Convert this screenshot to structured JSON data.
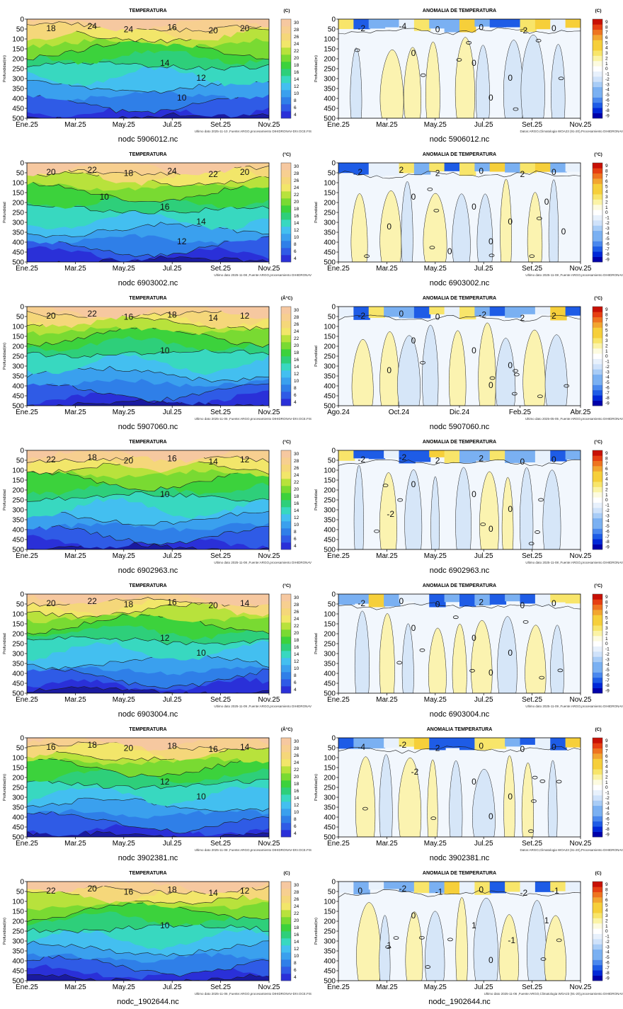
{
  "colors": {
    "temperature": [
      "#1a1aa0",
      "#2a30d8",
      "#2f5be6",
      "#2f7fe8",
      "#3aa0ee",
      "#43bff0",
      "#38d8c0",
      "#2ecf7a",
      "#3cd23c",
      "#79da32",
      "#b8e23c",
      "#f2e66a",
      "#f5d77a",
      "#f7cf90",
      "#f6c8a0"
    ],
    "anomaly": [
      "#0000aa",
      "#0028d8",
      "#1e5ce6",
      "#4a88ee",
      "#7ab0f2",
      "#a8ccf6",
      "#cfe2fa",
      "#e8f1fc",
      "#ffffff",
      "#fdfbe0",
      "#fbf3a6",
      "#f8e56a",
      "#f6cf3a",
      "#f2a530",
      "#ee7420",
      "#e63f12",
      "#c81005"
    ],
    "contour": "#1a1a1a"
  },
  "row_count": 7,
  "chart_data": [
    {
      "type": "heatmap",
      "panel": "temperature",
      "title": "TEMPERATURA",
      "unit": "(C)",
      "ylabel": "Profundidad(m)",
      "ylim": [
        500,
        0
      ],
      "yticks": [
        "0",
        "50",
        "100",
        "150",
        "200",
        "250",
        "300",
        "350",
        "400",
        "450",
        "500"
      ],
      "xticks": [
        "Ene.25",
        "Mar.25",
        "May.25",
        "Jul.25",
        "Set.25",
        "Nov.25"
      ],
      "colorbar_ticks": [
        "4",
        "6",
        "8",
        "10",
        "12",
        "14",
        "16",
        "18",
        "20",
        "22",
        "24",
        "26",
        "28",
        "30"
      ],
      "contour_labels": [
        "18",
        "24",
        "24",
        "16",
        "20",
        "20",
        "14",
        "12",
        "10"
      ],
      "credit": "Ultimo dato 2025-11-10 ,Fuente:ARGO,procesamiento DIHIDRONAV-DIV.OCE.FIS",
      "float": "nodc 5906012.nc"
    },
    {
      "type": "heatmap",
      "panel": "anomaly",
      "title": "ANOMALIA DE TEMPERATURA",
      "unit": "(C)",
      "ylabel": "Profundidad(m)",
      "ylim": [
        500,
        0
      ],
      "yticks": [
        "0",
        "50",
        "100",
        "150",
        "200",
        "250",
        "300",
        "350",
        "400",
        "450",
        "500"
      ],
      "xticks": [
        "Ene.25",
        "Mar.25",
        "May.25",
        "Jul.25",
        "Set.25",
        "Nov.25"
      ],
      "colorbar_ticks": [
        "9",
        "8",
        "7",
        "6",
        "5",
        "4",
        "3",
        "2",
        "1",
        "0",
        "-1",
        "-2",
        "-3",
        "-4",
        "-5",
        "-6",
        "-7",
        "-8",
        "-9"
      ],
      "contour_labels": [
        "-2",
        "-4",
        "0",
        "0",
        "-2",
        "0",
        "0",
        "0",
        "0",
        "0"
      ],
      "credit": "Datos:ARGO,Climatologia WOA23 (91-20),Procesamiento DIHIDRONAV",
      "float": "nodc 5906012.nc"
    },
    {
      "type": "heatmap",
      "panel": "temperature",
      "title": "TEMPERATURA",
      "unit": "(°C)",
      "ylabel": "Profundidad",
      "ylim": [
        500,
        0
      ],
      "yticks": [
        "0",
        "50",
        "100",
        "150",
        "200",
        "250",
        "300",
        "350",
        "400",
        "450",
        "500"
      ],
      "xticks": [
        "Ene.25",
        "Mar.25",
        "May.25",
        "Jul.25",
        "Set.25",
        "Nov.25"
      ],
      "colorbar_ticks": [
        "4",
        "6",
        "8",
        "10",
        "12",
        "14",
        "16",
        "18",
        "20",
        "22",
        "24",
        "26",
        "28",
        "30"
      ],
      "contour_labels": [
        "20",
        "22",
        "18",
        "24",
        "22",
        "20",
        "16",
        "14",
        "12",
        "10"
      ],
      "credit": "Ultimo dato 2025-11-08 ,Fuente:ARGO,procesamiento DIHIDRONAV",
      "float": "nodc 6903002.nc"
    },
    {
      "type": "heatmap",
      "panel": "anomaly",
      "title": "ANOMALIA DE TEMPERATURA",
      "unit": "(°C)",
      "ylabel": "Profundidad",
      "ylim": [
        500,
        0
      ],
      "yticks": [
        "0",
        "50",
        "100",
        "150",
        "200",
        "250",
        "300",
        "350",
        "400",
        "450",
        "500"
      ],
      "xticks": [
        "Ene.25",
        "Mar.25",
        "May.25",
        "Jul.25",
        "Set.25",
        "Nov.25"
      ],
      "colorbar_ticks": [
        "9",
        "8",
        "7",
        "6",
        "5",
        "4",
        "3",
        "2",
        "1",
        "0",
        "-1",
        "-2",
        "-3",
        "-4",
        "-5",
        "-6",
        "-7",
        "-8",
        "-9"
      ],
      "contour_labels": [
        "2",
        "2",
        "2",
        "0",
        "2",
        "0",
        "0",
        "0",
        "0",
        "0",
        "0",
        "0",
        "0",
        "0"
      ],
      "credit": "Ultimo dato 2025-11-08 ,Fuente:ARGO,procesamiento DIHIDRONAV",
      "float": "nodc 6903002.nc"
    },
    {
      "type": "heatmap",
      "panel": "temperature",
      "title": "TEMPERATURA",
      "unit": "(Â°C)",
      "ylabel": "Profundidad(m)",
      "ylim": [
        500,
        0
      ],
      "yticks": [
        "0",
        "50",
        "100",
        "150",
        "200",
        "250",
        "300",
        "350",
        "400",
        "450",
        "500"
      ],
      "xticks": [
        "Ene.25",
        "Mar.25",
        "May.25",
        "Jul.25",
        "Set.25",
        "Nov.25"
      ],
      "colorbar_ticks": [
        "4",
        "6",
        "8",
        "10",
        "12",
        "14",
        "16",
        "18",
        "20",
        "22",
        "24",
        "26",
        "28",
        "30"
      ],
      "contour_labels": [
        "20",
        "22",
        "16",
        "18",
        "14",
        "12",
        "10"
      ],
      "credit": "Ultimo dato 2025-11-05 ,Fuente:ARGO,procesamiento DIHIDRONAV-DIV.OCE.FIS",
      "float": "nodc 5907060.nc"
    },
    {
      "type": "heatmap",
      "panel": "anomaly",
      "title": "ANOMALIA DE TEMPERATURA",
      "unit": "(°C)",
      "ylabel": "Profundidad",
      "ylim": [
        500,
        0
      ],
      "yticks": [
        "0",
        "50",
        "100",
        "150",
        "200",
        "250",
        "300",
        "350",
        "400",
        "450",
        "500"
      ],
      "xticks": [
        "Ago.24",
        "Oct.24",
        "Dic.24",
        "Feb.25",
        "Abr.25"
      ],
      "colorbar_ticks": [
        "9",
        "8",
        "7",
        "6",
        "5",
        "4",
        "3",
        "2",
        "1",
        "0",
        "-1",
        "-2",
        "-3",
        "-4",
        "-5",
        "-6",
        "-7",
        "-8",
        "-9"
      ],
      "contour_labels": [
        "-2",
        "0",
        "0",
        "-2",
        "2",
        "2",
        "0",
        "0",
        "0",
        "0",
        "0"
      ],
      "credit": "Ultimo dato 2025-05-05 ,Fuente:ARGO,procesamiento DIHIDRONAV",
      "float": "nodc 5907060.nc"
    },
    {
      "type": "heatmap",
      "panel": "temperature",
      "title": "TEMPERATURA",
      "unit": "(°C)",
      "ylabel": "Profundidad",
      "ylim": [
        500,
        0
      ],
      "yticks": [
        "0",
        "50",
        "100",
        "150",
        "200",
        "250",
        "300",
        "350",
        "400",
        "450",
        "500"
      ],
      "xticks": [
        "Ene.25",
        "Mar.25",
        "May.25",
        "Jul.25",
        "Set.25",
        "Nov.25"
      ],
      "colorbar_ticks": [
        "4",
        "6",
        "8",
        "10",
        "12",
        "14",
        "16",
        "18",
        "20",
        "22",
        "24",
        "26",
        "28",
        "30"
      ],
      "contour_labels": [
        "22",
        "18",
        "20",
        "16",
        "14",
        "12",
        "10"
      ],
      "credit": "Ultimo dato 2025-11-08 ,Fuente:ARGO,procesamiento DIHIDRONAV",
      "float": "nodc 6902963.nc"
    },
    {
      "type": "heatmap",
      "panel": "anomaly",
      "title": "ANOMALIA DE TEMPERATURA",
      "unit": "(°C)",
      "ylabel": "Profundidad",
      "ylim": [
        500,
        0
      ],
      "yticks": [
        "0",
        "50",
        "100",
        "150",
        "200",
        "250",
        "300",
        "350",
        "400",
        "450",
        "500"
      ],
      "xticks": [
        "Ene.25",
        "Mar.25",
        "May.25",
        "Jul.25",
        "Set.25",
        "Nov.25"
      ],
      "colorbar_ticks": [
        "9",
        "8",
        "7",
        "6",
        "5",
        "4",
        "3",
        "2",
        "1",
        "0",
        "-1",
        "-2",
        "-3",
        "-4",
        "-5",
        "-6",
        "-7",
        "-8",
        "-9"
      ],
      "contour_labels": [
        "-2",
        "-2",
        "2",
        "2",
        "0",
        "0",
        "0",
        "0",
        "0",
        "0",
        "-2"
      ],
      "credit": "Ultimo dato 2025-11-08 ,Fuente:ARGO,procesamiento DIHIDRONAV",
      "float": "nodc 6902963.nc"
    },
    {
      "type": "heatmap",
      "panel": "temperature",
      "title": "TEMPERATURA",
      "unit": "(°C)",
      "ylabel": "Profundidad",
      "ylim": [
        500,
        0
      ],
      "yticks": [
        "0",
        "50",
        "100",
        "150",
        "200",
        "250",
        "300",
        "350",
        "400",
        "450",
        "500"
      ],
      "xticks": [
        "Ene.25",
        "Mar.25",
        "May.25",
        "Jul.25",
        "Set.25",
        "Nov.25"
      ],
      "colorbar_ticks": [
        "4",
        "6",
        "8",
        "10",
        "12",
        "14",
        "16",
        "18",
        "20",
        "22",
        "24",
        "26",
        "28",
        "30"
      ],
      "contour_labels": [
        "20",
        "22",
        "18",
        "16",
        "20",
        "14",
        "12",
        "10"
      ],
      "credit": "Ultimo dato 2025-11-09 ,Fuente:ARGO,procesamiento DIHIDRONAV",
      "float": "nodc 6903004.nc"
    },
    {
      "type": "heatmap",
      "panel": "anomaly",
      "title": "ANOMALIA DE TEMPERATURA",
      "unit": "(°C)",
      "ylabel": "Profundidad",
      "ylim": [
        500,
        0
      ],
      "yticks": [
        "0",
        "50",
        "100",
        "150",
        "200",
        "250",
        "300",
        "350",
        "400",
        "450",
        "500"
      ],
      "xticks": [
        "Ene.25",
        "Mar.25",
        "May.25",
        "Jul.25",
        "Set.25",
        "Nov.25"
      ],
      "colorbar_ticks": [
        "9",
        "8",
        "7",
        "6",
        "5",
        "4",
        "3",
        "2",
        "1",
        "0",
        "-1",
        "-2",
        "-3",
        "-4",
        "-5",
        "-6",
        "-7",
        "-8",
        "-9"
      ],
      "contour_labels": [
        "-2",
        "0",
        "0",
        "2",
        "0",
        "0",
        "0",
        "0",
        "0",
        "0"
      ],
      "credit": "Ultimo dato 2025-11-09 ,Fuente:ARGO,procesamiento DIHIDRONAV",
      "float": "nodc 6903004.nc"
    },
    {
      "type": "heatmap",
      "panel": "temperature",
      "title": "TEMPERATURA",
      "unit": "(Â°C)",
      "ylabel": "Profundidad(m)",
      "ylim": [
        500,
        0
      ],
      "yticks": [
        "0",
        "50",
        "100",
        "150",
        "200",
        "250",
        "300",
        "350",
        "400",
        "450",
        "500"
      ],
      "xticks": [
        "Ene.25",
        "Mar.25",
        "May.25",
        "Jul.25",
        "Set.25",
        "Nov.25"
      ],
      "colorbar_ticks": [
        "4",
        "6",
        "8",
        "10",
        "12",
        "14",
        "16",
        "18",
        "20",
        "22",
        "24",
        "26",
        "28",
        "30"
      ],
      "contour_labels": [
        "16",
        "18",
        "20",
        "18",
        "16",
        "14",
        "12",
        "10"
      ],
      "credit": "Ultimo dato 2025-11-08 ,Fuente:ARGO,procesamiento DIHIDRONAV-DIV.OCE.FIS",
      "float": "nodc 3902381.nc"
    },
    {
      "type": "heatmap",
      "panel": "anomaly",
      "title": "ANOMALIA TEMPERATURA",
      "unit": "(C)",
      "ylabel": "Profundidad(m)",
      "ylim": [
        500,
        0
      ],
      "yticks": [
        "0",
        "50",
        "100",
        "150",
        "200",
        "250",
        "300",
        "350",
        "400",
        "450",
        "500"
      ],
      "xticks": [
        "Ene.25",
        "Mar.25",
        "May.25",
        "Jul.25",
        "Set.25",
        "Nov.25"
      ],
      "colorbar_ticks": [
        "9",
        "8",
        "7",
        "6",
        "5",
        "4",
        "3",
        "2",
        "1",
        "0",
        "-1",
        "-2",
        "-3",
        "-4",
        "-5",
        "-6",
        "-7",
        "-8",
        "-9"
      ],
      "contour_labels": [
        "-4",
        "-2",
        "2",
        "0",
        "0",
        "0",
        "0",
        "0",
        "0",
        "-2"
      ],
      "credit": "Datos:ARGO,Climatologia WOA23 (91-20),Procesamiento DIHIDRONAV",
      "float": "nodc 3902381.nc"
    },
    {
      "type": "heatmap",
      "panel": "temperature",
      "title": "TEMPERATURA",
      "unit": "(C)",
      "ylabel": "Profundidad(m)",
      "ylim": [
        500,
        0
      ],
      "yticks": [
        "0",
        "50",
        "100",
        "150",
        "200",
        "250",
        "300",
        "350",
        "400",
        "450",
        "500"
      ],
      "xticks": [
        "Ene.25",
        "Mar.25",
        "May.25",
        "Jul.25",
        "Set.25",
        "Nov.25"
      ],
      "colorbar_ticks": [
        "4",
        "6",
        "8",
        "10",
        "12",
        "14",
        "16",
        "18",
        "20",
        "22",
        "24",
        "26",
        "28",
        "30"
      ],
      "contour_labels": [
        "22",
        "20",
        "16",
        "18",
        "14",
        "12",
        "10"
      ],
      "credit": "Ultimo dato 2025-11-06 ,Fuente:ARGO,procesamiento DIHIDRONAV-DIV.OCE.FIS",
      "float": "nodc_1902644.nc"
    },
    {
      "type": "heatmap",
      "panel": "anomaly",
      "title": "ANOMALIA DE TEMPERATURA",
      "unit": "(C)",
      "ylabel": "Profundidad(m)",
      "ylim": [
        500,
        0
      ],
      "yticks": [
        "0",
        "50",
        "100",
        "150",
        "200",
        "250",
        "300",
        "350",
        "400",
        "450",
        "500"
      ],
      "xticks": [
        "Ene.25",
        "Mar.25",
        "May.25",
        "Jul.25",
        "Set.25",
        "Nov.25"
      ],
      "colorbar_ticks": [
        "9",
        "8",
        "7",
        "6",
        "5",
        "4",
        "3",
        "2",
        "1",
        "0",
        "-1",
        "-2",
        "-3",
        "-4",
        "-5",
        "-6",
        "-7",
        "-8",
        "-9"
      ],
      "contour_labels": [
        "0",
        "-2",
        "-1",
        "0",
        "-2",
        "-1",
        "1",
        "-1",
        "0",
        "0",
        "1",
        "1"
      ],
      "credit": "Ultimo dato 2025-11-06 ,Fuente:ARGO,Climatologia WOA23 (91-20),procesamiento DIHIDRONAV",
      "float": "nodc_1902644.nc"
    }
  ]
}
